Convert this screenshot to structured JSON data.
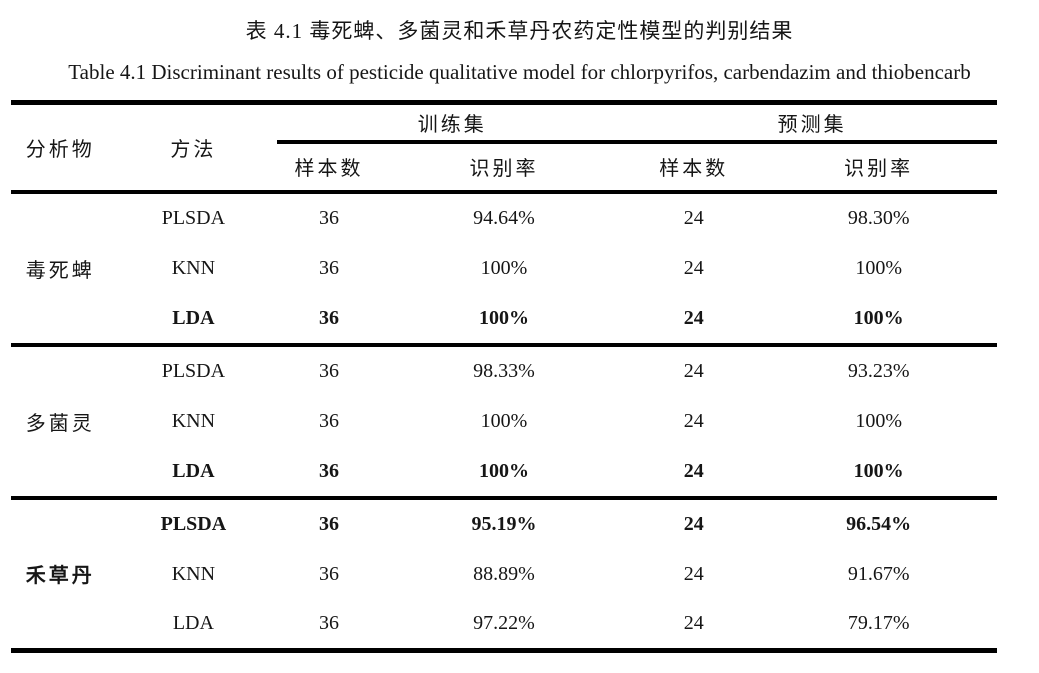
{
  "captions": {
    "zh": "表 4.1 毒死蜱、多菌灵和禾草丹农药定性模型的判别结果",
    "en": "Table 4.1 Discriminant results of pesticide qualitative model for chlorpyrifos, carbendazim and thiobencarb"
  },
  "colors": {
    "text": "#161616",
    "rule": "#000000",
    "background": "#ffffff"
  },
  "table": {
    "headers": {
      "analyte": "分析物",
      "method": "方法",
      "train_set": "训练集",
      "predict_set": "预测集",
      "samples": "样本数",
      "rate": "识别率"
    },
    "groups": [
      {
        "analyte": "毒死蜱",
        "rows": [
          {
            "method": "PLSDA",
            "train_n": "36",
            "train_rate": "94.64%",
            "pred_n": "24",
            "pred_rate": "98.30%",
            "bold": false
          },
          {
            "method": "KNN",
            "train_n": "36",
            "train_rate": "100%",
            "pred_n": "24",
            "pred_rate": "100%",
            "bold": false
          },
          {
            "method": "LDA",
            "train_n": "36",
            "train_rate": "100%",
            "pred_n": "24",
            "pred_rate": "100%",
            "bold": true
          }
        ]
      },
      {
        "analyte": "多菌灵",
        "rows": [
          {
            "method": "PLSDA",
            "train_n": "36",
            "train_rate": "98.33%",
            "pred_n": "24",
            "pred_rate": "93.23%",
            "bold": false
          },
          {
            "method": "KNN",
            "train_n": "36",
            "train_rate": "100%",
            "pred_n": "24",
            "pred_rate": "100%",
            "bold": false
          },
          {
            "method": "LDA",
            "train_n": "36",
            "train_rate": "100%",
            "pred_n": "24",
            "pred_rate": "100%",
            "bold": true
          }
        ]
      },
      {
        "analyte": "禾草丹",
        "rows": [
          {
            "method": "PLSDA",
            "train_n": "36",
            "train_rate": "95.19%",
            "pred_n": "24",
            "pred_rate": "96.54%",
            "bold": true
          },
          {
            "method": "KNN",
            "train_n": "36",
            "train_rate": "88.89%",
            "pred_n": "24",
            "pred_rate": "91.67%",
            "bold": false
          },
          {
            "method": "LDA",
            "train_n": "36",
            "train_rate": "97.22%",
            "pred_n": "24",
            "pred_rate": "79.17%",
            "bold": false
          }
        ]
      }
    ]
  },
  "chart_data": {
    "type": "table",
    "title": "表 4.1 毒死蜱、多菌灵和禾草丹农药定性模型的判别结果",
    "subtitle": "Table 4.1 Discriminant results of pesticide qualitative model for chlorpyrifos, carbendazim and thiobencarb",
    "columns": [
      "分析物",
      "方法",
      "训练集 样本数",
      "训练集 识别率",
      "预测集 样本数",
      "预测集 识别率"
    ],
    "rows": [
      [
        "毒死蜱",
        "PLSDA",
        36,
        "94.64%",
        24,
        "98.30%"
      ],
      [
        "毒死蜱",
        "KNN",
        36,
        "100%",
        24,
        "100%"
      ],
      [
        "毒死蜱",
        "LDA",
        36,
        "100%",
        24,
        "100%"
      ],
      [
        "多菌灵",
        "PLSDA",
        36,
        "98.33%",
        24,
        "93.23%"
      ],
      [
        "多菌灵",
        "KNN",
        36,
        "100%",
        24,
        "100%"
      ],
      [
        "多菌灵",
        "LDA",
        36,
        "100%",
        24,
        "100%"
      ],
      [
        "禾草丹",
        "PLSDA",
        36,
        "95.19%",
        24,
        "96.54%"
      ],
      [
        "禾草丹",
        "KNN",
        36,
        "88.89%",
        24,
        "91.67%"
      ],
      [
        "禾草丹",
        "LDA",
        36,
        "97.22%",
        24,
        "79.17%"
      ]
    ]
  }
}
